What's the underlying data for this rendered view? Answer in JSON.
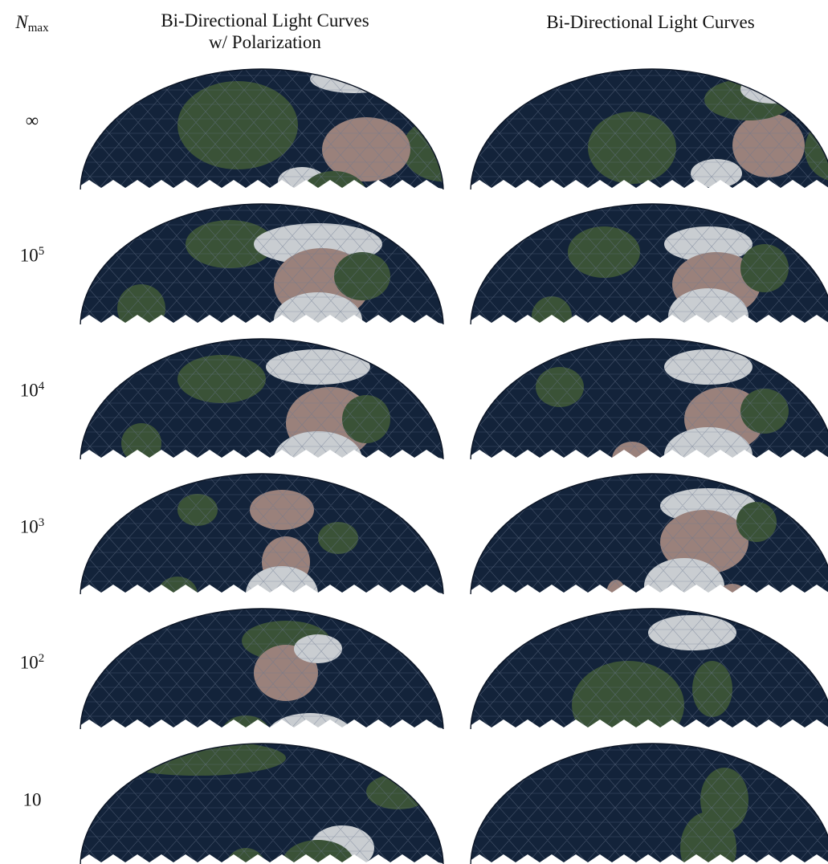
{
  "header": {
    "n_symbol": "N",
    "n_subscript": "max",
    "col1_line1": "Bi-Directional Light Curves",
    "col1_line2": "w/ Polarization",
    "col2": "Bi-Directional Light Curves"
  },
  "rows": [
    {
      "base": "∞",
      "exp": ""
    },
    {
      "base": "10",
      "exp": "5"
    },
    {
      "base": "10",
      "exp": "4"
    },
    {
      "base": "10",
      "exp": "3"
    },
    {
      "base": "10",
      "exp": "2"
    },
    {
      "base": "10",
      "exp": ""
    }
  ],
  "colors": {
    "ocean": "#13233a",
    "land": "#3a5237",
    "desert": "#9a817b",
    "ice": "#c9cdd1",
    "mesh": "#6b7890"
  }
}
